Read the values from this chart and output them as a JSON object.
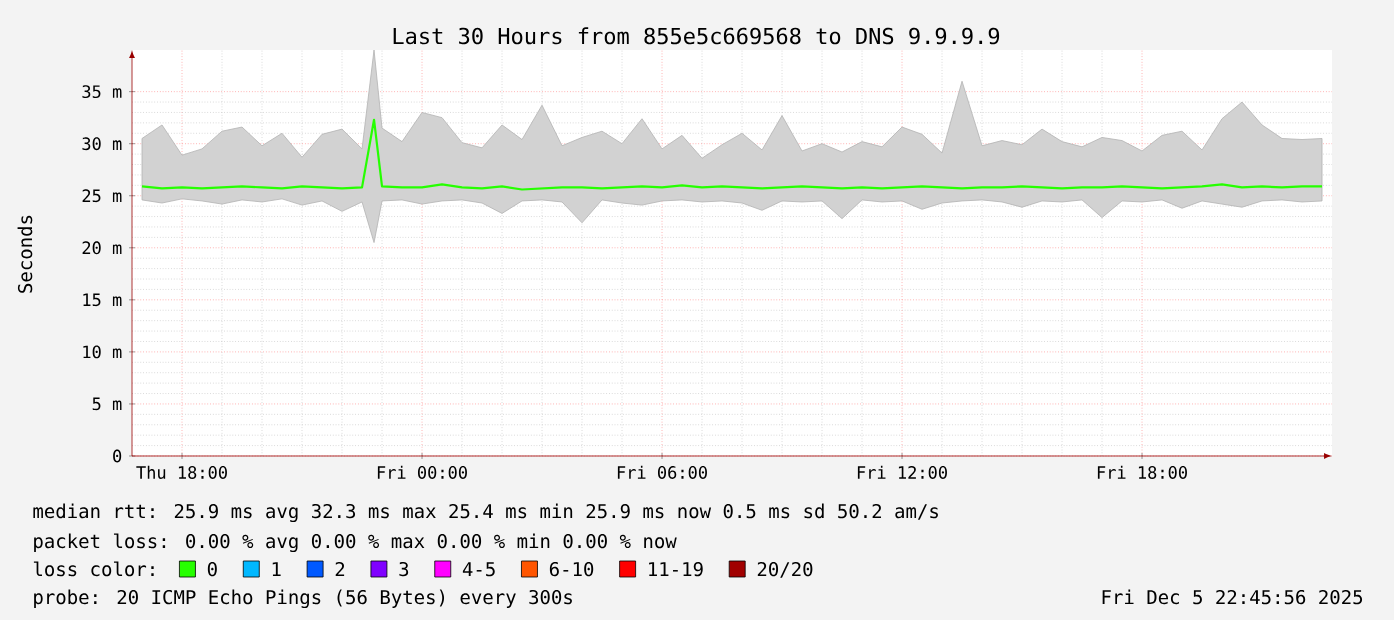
{
  "chart_data": {
    "type": "line",
    "title": "Last 30 Hours from 855e5c669568 to DNS 9.9.9.9",
    "ylabel": "Seconds",
    "x": [
      "2025-12-04T17:00",
      "2025-12-04T17:30",
      "2025-12-04T18:00",
      "2025-12-04T18:30",
      "2025-12-04T19:00",
      "2025-12-04T19:30",
      "2025-12-04T20:00",
      "2025-12-04T20:30",
      "2025-12-04T21:00",
      "2025-12-04T21:30",
      "2025-12-04T22:00",
      "2025-12-04T22:30",
      "2025-12-04T22:48",
      "2025-12-04T23:00",
      "2025-12-04T23:30",
      "2025-12-05T00:00",
      "2025-12-05T00:30",
      "2025-12-05T01:00",
      "2025-12-05T01:30",
      "2025-12-05T02:00",
      "2025-12-05T02:30",
      "2025-12-05T03:00",
      "2025-12-05T03:30",
      "2025-12-05T04:00",
      "2025-12-05T04:30",
      "2025-12-05T05:00",
      "2025-12-05T05:30",
      "2025-12-05T06:00",
      "2025-12-05T06:30",
      "2025-12-05T07:00",
      "2025-12-05T07:30",
      "2025-12-05T08:00",
      "2025-12-05T08:30",
      "2025-12-05T09:00",
      "2025-12-05T09:30",
      "2025-12-05T10:00",
      "2025-12-05T10:30",
      "2025-12-05T11:00",
      "2025-12-05T11:30",
      "2025-12-05T12:00",
      "2025-12-05T12:30",
      "2025-12-05T13:00",
      "2025-12-05T13:30",
      "2025-12-05T14:00",
      "2025-12-05T14:30",
      "2025-12-05T15:00",
      "2025-12-05T15:30",
      "2025-12-05T16:00",
      "2025-12-05T16:30",
      "2025-12-05T17:00",
      "2025-12-05T17:30",
      "2025-12-05T18:00",
      "2025-12-05T18:30",
      "2025-12-05T19:00",
      "2025-12-05T19:30",
      "2025-12-05T20:00",
      "2025-12-05T20:30",
      "2025-12-05T21:00",
      "2025-12-05T21:30",
      "2025-12-05T22:00",
      "2025-12-05T22:30"
    ],
    "series": [
      {
        "name": "0",
        "color": "#26ff00",
        "values": [
          25.9,
          25.7,
          25.8,
          25.7,
          25.8,
          25.9,
          25.8,
          25.7,
          25.9,
          25.8,
          25.7,
          25.8,
          32.3,
          25.9,
          25.8,
          25.8,
          26.1,
          25.8,
          25.7,
          25.9,
          25.6,
          25.7,
          25.8,
          25.8,
          25.7,
          25.8,
          25.9,
          25.8,
          26.0,
          25.8,
          25.9,
          25.8,
          25.7,
          25.8,
          25.9,
          25.8,
          25.7,
          25.8,
          25.7,
          25.8,
          25.9,
          25.8,
          25.7,
          25.8,
          25.8,
          25.9,
          25.8,
          25.7,
          25.8,
          25.8,
          25.9,
          25.8,
          25.7,
          25.8,
          25.9,
          26.1,
          25.8,
          25.9,
          25.8,
          25.9,
          25.9
        ],
        "lower": [
          24.6,
          24.3,
          24.7,
          24.5,
          24.2,
          24.6,
          24.4,
          24.7,
          24.1,
          24.5,
          23.5,
          24.4,
          20.5,
          24.5,
          24.6,
          24.2,
          24.5,
          24.6,
          24.3,
          23.3,
          24.5,
          24.6,
          24.4,
          22.4,
          24.6,
          24.3,
          24.1,
          24.5,
          24.6,
          24.4,
          24.5,
          24.3,
          23.6,
          24.5,
          24.4,
          24.5,
          22.8,
          24.6,
          24.4,
          24.5,
          23.7,
          24.3,
          24.5,
          24.6,
          24.4,
          23.9,
          24.5,
          24.4,
          24.6,
          22.9,
          24.5,
          24.4,
          24.6,
          23.8,
          24.5,
          24.2,
          23.9,
          24.5,
          24.6,
          24.4,
          24.5
        ],
        "upper": [
          30.5,
          31.8,
          28.9,
          29.5,
          31.2,
          31.6,
          29.8,
          31.0,
          28.7,
          30.9,
          31.4,
          29.5,
          39,
          31.5,
          30.2,
          33.0,
          32.5,
          30.1,
          29.6,
          31.8,
          30.4,
          33.7,
          29.8,
          30.6,
          31.2,
          30.0,
          32.4,
          29.5,
          30.8,
          28.6,
          29.9,
          31.0,
          29.4,
          32.7,
          29.3,
          30.0,
          29.2,
          30.2,
          29.7,
          31.6,
          30.9,
          29.1,
          36.0,
          29.8,
          30.3,
          29.9,
          31.4,
          30.2,
          29.7,
          30.6,
          30.3,
          29.3,
          30.8,
          31.2,
          29.4,
          32.4,
          34.0,
          31.8,
          30.5,
          30.4,
          30.5
        ]
      },
      {
        "name": "1",
        "color": "#00b8ff",
        "values": [
          null,
          null,
          null,
          null,
          null,
          null,
          null,
          null,
          null,
          null,
          null,
          null,
          null,
          null,
          null,
          null,
          null,
          null,
          null,
          null,
          null,
          null,
          null,
          null,
          null,
          null,
          null,
          null,
          null,
          null,
          null,
          null,
          null,
          null,
          null,
          null,
          null,
          null,
          null,
          null,
          null,
          null,
          null,
          null,
          null,
          null,
          null,
          null,
          null,
          null,
          null,
          null,
          null,
          null,
          null,
          null,
          null,
          null,
          null,
          null,
          null
        ]
      },
      {
        "name": "2",
        "color": "#0059ff",
        "values": [
          null,
          null,
          null,
          null,
          null,
          null,
          null,
          null,
          null,
          null,
          null,
          null,
          null,
          null,
          null,
          null,
          null,
          null,
          null,
          null,
          null,
          null,
          null,
          null,
          null,
          null,
          null,
          null,
          null,
          null,
          null,
          null,
          null,
          null,
          null,
          null,
          null,
          null,
          null,
          null,
          null,
          null,
          null,
          null,
          null,
          null,
          null,
          null,
          null,
          null,
          null,
          null,
          null,
          null,
          null,
          null,
          null,
          null,
          null,
          null,
          null
        ]
      },
      {
        "name": "3",
        "color": "#8000ff",
        "values": [
          null,
          null,
          null,
          null,
          null,
          null,
          null,
          null,
          null,
          null,
          null,
          null,
          null,
          null,
          null,
          null,
          null,
          null,
          null,
          null,
          null,
          null,
          null,
          null,
          null,
          null,
          null,
          null,
          null,
          null,
          null,
          null,
          null,
          null,
          null,
          null,
          null,
          null,
          null,
          null,
          null,
          null,
          null,
          null,
          null,
          null,
          null,
          null,
          null,
          null,
          null,
          null,
          null,
          null,
          null,
          null,
          null,
          null,
          null,
          null,
          null
        ]
      },
      {
        "name": "4-5",
        "color": "#ff00ff",
        "values": [
          null,
          null,
          null,
          null,
          null,
          null,
          null,
          null,
          null,
          null,
          null,
          null,
          null,
          null,
          null,
          null,
          null,
          null,
          null,
          null,
          null,
          null,
          null,
          null,
          null,
          null,
          null,
          null,
          null,
          null,
          null,
          null,
          null,
          null,
          null,
          null,
          null,
          null,
          null,
          null,
          null,
          null,
          null,
          null,
          null,
          null,
          null,
          null,
          null,
          null,
          null,
          null,
          null,
          null,
          null,
          null,
          null,
          null,
          null,
          null,
          null
        ]
      },
      {
        "name": "6-10",
        "color": "#ff5500",
        "values": [
          null,
          null,
          null,
          null,
          null,
          null,
          null,
          null,
          null,
          null,
          null,
          null,
          null,
          null,
          null,
          null,
          null,
          null,
          null,
          null,
          null,
          null,
          null,
          null,
          null,
          null,
          null,
          null,
          null,
          null,
          null,
          null,
          null,
          null,
          null,
          null,
          null,
          null,
          null,
          null,
          null,
          null,
          null,
          null,
          null,
          null,
          null,
          null,
          null,
          null,
          null,
          null,
          null,
          null,
          null,
          null,
          null,
          null,
          null,
          null,
          null
        ]
      },
      {
        "name": "11-19",
        "color": "#ff0000",
        "values": [
          null,
          null,
          null,
          null,
          null,
          null,
          null,
          null,
          null,
          null,
          null,
          null,
          null,
          null,
          null,
          null,
          null,
          null,
          null,
          null,
          null,
          null,
          null,
          null,
          null,
          null,
          null,
          null,
          null,
          null,
          null,
          null,
          null,
          null,
          null,
          null,
          null,
          null,
          null,
          null,
          null,
          null,
          null,
          null,
          null,
          null,
          null,
          null,
          null,
          null,
          null,
          null,
          null,
          null,
          null,
          null,
          null,
          null,
          null,
          null,
          null
        ]
      },
      {
        "name": "20/20",
        "color": "#a10000",
        "values": [
          null,
          null,
          null,
          null,
          null,
          null,
          null,
          null,
          null,
          null,
          null,
          null,
          null,
          null,
          null,
          null,
          null,
          null,
          null,
          null,
          null,
          null,
          null,
          null,
          null,
          null,
          null,
          null,
          null,
          null,
          null,
          null,
          null,
          null,
          null,
          null,
          null,
          null,
          null,
          null,
          null,
          null,
          null,
          null,
          null,
          null,
          null,
          null,
          null,
          null,
          null,
          null,
          null,
          null,
          null,
          null,
          null,
          null,
          null,
          null,
          null
        ]
      }
    ],
    "xlim": [
      "2025-12-04T16:45",
      "2025-12-05T22:45"
    ],
    "xticks": [
      {
        "value": "2025-12-04T18:00",
        "label": "Thu 18:00"
      },
      {
        "value": "2025-12-05T00:00",
        "label": "Fri 00:00"
      },
      {
        "value": "2025-12-05T06:00",
        "label": "Fri 06:00"
      },
      {
        "value": "2025-12-05T12:00",
        "label": "Fri 12:00"
      },
      {
        "value": "2025-12-05T18:00",
        "label": "Fri 18:00"
      }
    ],
    "ylim": [
      0,
      39
    ],
    "yticks": [
      0,
      {
        "value": 5,
        "label": "5 m"
      },
      {
        "value": 10,
        "label": "10 m"
      },
      {
        "value": 15,
        "label": "15 m"
      },
      {
        "value": 20,
        "label": "20 m"
      },
      {
        "value": 25,
        "label": "25 m"
      },
      {
        "value": 30,
        "label": "30 m"
      },
      {
        "value": 35,
        "label": "35 m"
      }
    ],
    "grid": true,
    "legend": "bottom",
    "legend_title": "loss color:",
    "annotations": [
      "median rtt:  25.9 ms avg  32.3 ms max  25.4 ms min  25.9 ms now  0.5 ms sd  50.2   am/s",
      "packet loss: 0.00 % avg  0.00 % max  0.00 % min  0.00 % now",
      "probe:          20 ICMP Echo Pings (56 Bytes) every 300s",
      "Fri Dec  5 22:45:56 2025"
    ]
  }
}
